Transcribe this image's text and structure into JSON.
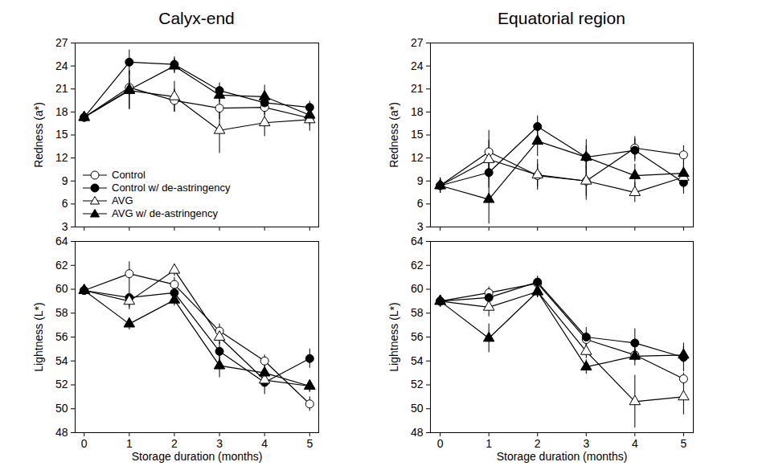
{
  "chart_data": [
    {
      "type": "line",
      "title": "Calyx-end",
      "y_label": "Redness (a*)",
      "x": [
        0,
        1,
        2,
        3,
        4,
        5
      ],
      "xlim": [
        -0.2,
        5.2
      ],
      "xticks": [
        0,
        1,
        2,
        3,
        4,
        5
      ],
      "ylim": [
        3,
        27
      ],
      "yticks": [
        3,
        6,
        9,
        12,
        15,
        18,
        21,
        24,
        27
      ],
      "grid": false,
      "tick_labels": "y",
      "legend": "lower left",
      "series": [
        {
          "name": "Control",
          "color": "#000000",
          "marker": "circle-open",
          "values": [
            17.3,
            21.2,
            19.5,
            18.5,
            18.6,
            17.2
          ],
          "errors": [
            0.5,
            1.0,
            1.5,
            1.5,
            1.0,
            1.0
          ]
        },
        {
          "name": "Control w/ de-astringency",
          "color": "#000000",
          "marker": "circle",
          "values": [
            17.3,
            24.5,
            24.2,
            20.8,
            19.2,
            18.6
          ],
          "errors": [
            0.5,
            1.6,
            1.0,
            1.0,
            1.0,
            0.8
          ]
        },
        {
          "name": "AVG",
          "color": "#000000",
          "marker": "triangle-open",
          "values": [
            17.3,
            20.8,
            20.0,
            15.6,
            16.6,
            17.0
          ],
          "errors": [
            0.5,
            2.5,
            2.0,
            3.0,
            1.8,
            1.5
          ]
        },
        {
          "name": "AVG w/ de-astringency",
          "color": "#000000",
          "marker": "triangle",
          "values": [
            17.3,
            20.9,
            24.0,
            20.2,
            20.0,
            17.6
          ],
          "errors": [
            0.5,
            2.5,
            1.0,
            1.0,
            1.5,
            1.0
          ]
        }
      ]
    },
    {
      "type": "line",
      "title": "Equatorial region",
      "y_label": "Redness (a*)",
      "x": [
        0,
        1,
        2,
        3,
        4,
        5
      ],
      "xlim": [
        -0.2,
        5.2
      ],
      "xticks": [
        0,
        1,
        2,
        3,
        4,
        5
      ],
      "ylim": [
        3,
        27
      ],
      "yticks": [
        3,
        6,
        9,
        12,
        15,
        18,
        21,
        24,
        27
      ],
      "grid": false,
      "tick_labels": "y",
      "series": [
        {
          "name": "Control",
          "color": "#000000",
          "marker": "circle-open",
          "values": [
            8.4,
            12.8,
            9.7,
            9.0,
            13.3,
            12.4
          ],
          "errors": [
            1.0,
            2.8,
            1.5,
            2.5,
            1.5,
            1.2
          ]
        },
        {
          "name": "Control w/ de-astringency",
          "color": "#000000",
          "marker": "circle",
          "values": [
            8.4,
            10.1,
            16.1,
            12.1,
            13.0,
            8.8
          ],
          "errors": [
            1.0,
            2.0,
            1.4,
            2.3,
            1.5,
            1.5
          ]
        },
        {
          "name": "AVG",
          "color": "#000000",
          "marker": "triangle-open",
          "values": [
            8.4,
            11.8,
            9.8,
            9.0,
            7.5,
            9.5
          ],
          "errors": [
            1.0,
            2.5,
            2.0,
            2.0,
            1.3,
            1.5
          ]
        },
        {
          "name": "AVG w/ de-astringency",
          "color": "#000000",
          "marker": "triangle",
          "values": [
            8.4,
            6.6,
            14.2,
            12.1,
            9.7,
            10.0
          ],
          "errors": [
            1.0,
            3.2,
            2.0,
            1.5,
            1.5,
            1.5
          ]
        }
      ]
    },
    {
      "type": "line",
      "y_label": "Lightness (L*)",
      "x_label": "Storage duration (months)",
      "x": [
        0,
        1,
        2,
        3,
        4,
        5
      ],
      "xlim": [
        -0.2,
        5.2
      ],
      "xticks": [
        0,
        1,
        2,
        3,
        4,
        5
      ],
      "ylim": [
        48,
        64
      ],
      "yticks": [
        48,
        50,
        52,
        54,
        56,
        58,
        60,
        62,
        64
      ],
      "grid": false,
      "series": [
        {
          "name": "Control",
          "color": "#000000",
          "marker": "circle-open",
          "values": [
            59.9,
            61.3,
            60.4,
            56.5,
            54.0,
            50.4
          ],
          "errors": [
            0.3,
            1.0,
            0.6,
            0.6,
            0.5,
            0.6
          ]
        },
        {
          "name": "Control w/ de-astringency",
          "color": "#000000",
          "marker": "circle",
          "values": [
            59.9,
            59.3,
            59.7,
            54.8,
            52.2,
            54.2
          ],
          "errors": [
            0.3,
            1.0,
            0.5,
            0.8,
            1.0,
            0.8
          ]
        },
        {
          "name": "AVG",
          "color": "#000000",
          "marker": "triangle-open",
          "values": [
            59.9,
            59.0,
            61.6,
            56.0,
            52.4,
            51.9
          ],
          "errors": [
            0.3,
            0.5,
            0.5,
            0.6,
            0.5,
            0.5
          ]
        },
        {
          "name": "AVG w/ de-astringency",
          "color": "#000000",
          "marker": "triangle",
          "values": [
            59.9,
            57.1,
            59.1,
            53.6,
            53.0,
            51.9
          ],
          "errors": [
            0.3,
            0.5,
            0.5,
            1.0,
            0.8,
            0.5
          ]
        }
      ]
    },
    {
      "type": "line",
      "y_label": "Lightness (L*)",
      "x_label": "Storage duration (months)",
      "x": [
        0,
        1,
        2,
        3,
        4,
        5
      ],
      "xlim": [
        -0.2,
        5.2
      ],
      "xticks": [
        0,
        1,
        2,
        3,
        4,
        5
      ],
      "ylim": [
        48,
        64
      ],
      "yticks": [
        48,
        50,
        52,
        54,
        56,
        58,
        60,
        62,
        64
      ],
      "grid": false,
      "series": [
        {
          "name": "Control",
          "color": "#000000",
          "marker": "circle-open",
          "values": [
            59.0,
            59.7,
            60.5,
            55.8,
            54.5,
            52.5
          ],
          "errors": [
            0.5,
            0.5,
            0.4,
            0.6,
            0.5,
            0.5
          ]
        },
        {
          "name": "Control w/ de-astringency",
          "color": "#000000",
          "marker": "circle",
          "values": [
            59.0,
            59.3,
            60.6,
            56.0,
            55.5,
            54.3
          ],
          "errors": [
            0.5,
            0.5,
            0.5,
            0.8,
            1.2,
            1.2
          ]
        },
        {
          "name": "AVG",
          "color": "#000000",
          "marker": "triangle-open",
          "values": [
            59.0,
            58.5,
            59.8,
            54.8,
            50.6,
            51.0
          ],
          "errors": [
            0.5,
            0.8,
            0.5,
            0.6,
            2.2,
            1.5
          ]
        },
        {
          "name": "AVG w/ de-astringency",
          "color": "#000000",
          "marker": "triangle",
          "values": [
            59.0,
            55.9,
            59.8,
            53.5,
            54.4,
            54.5
          ],
          "errors": [
            0.5,
            1.2,
            0.5,
            0.6,
            0.8,
            0.7
          ]
        }
      ]
    }
  ]
}
